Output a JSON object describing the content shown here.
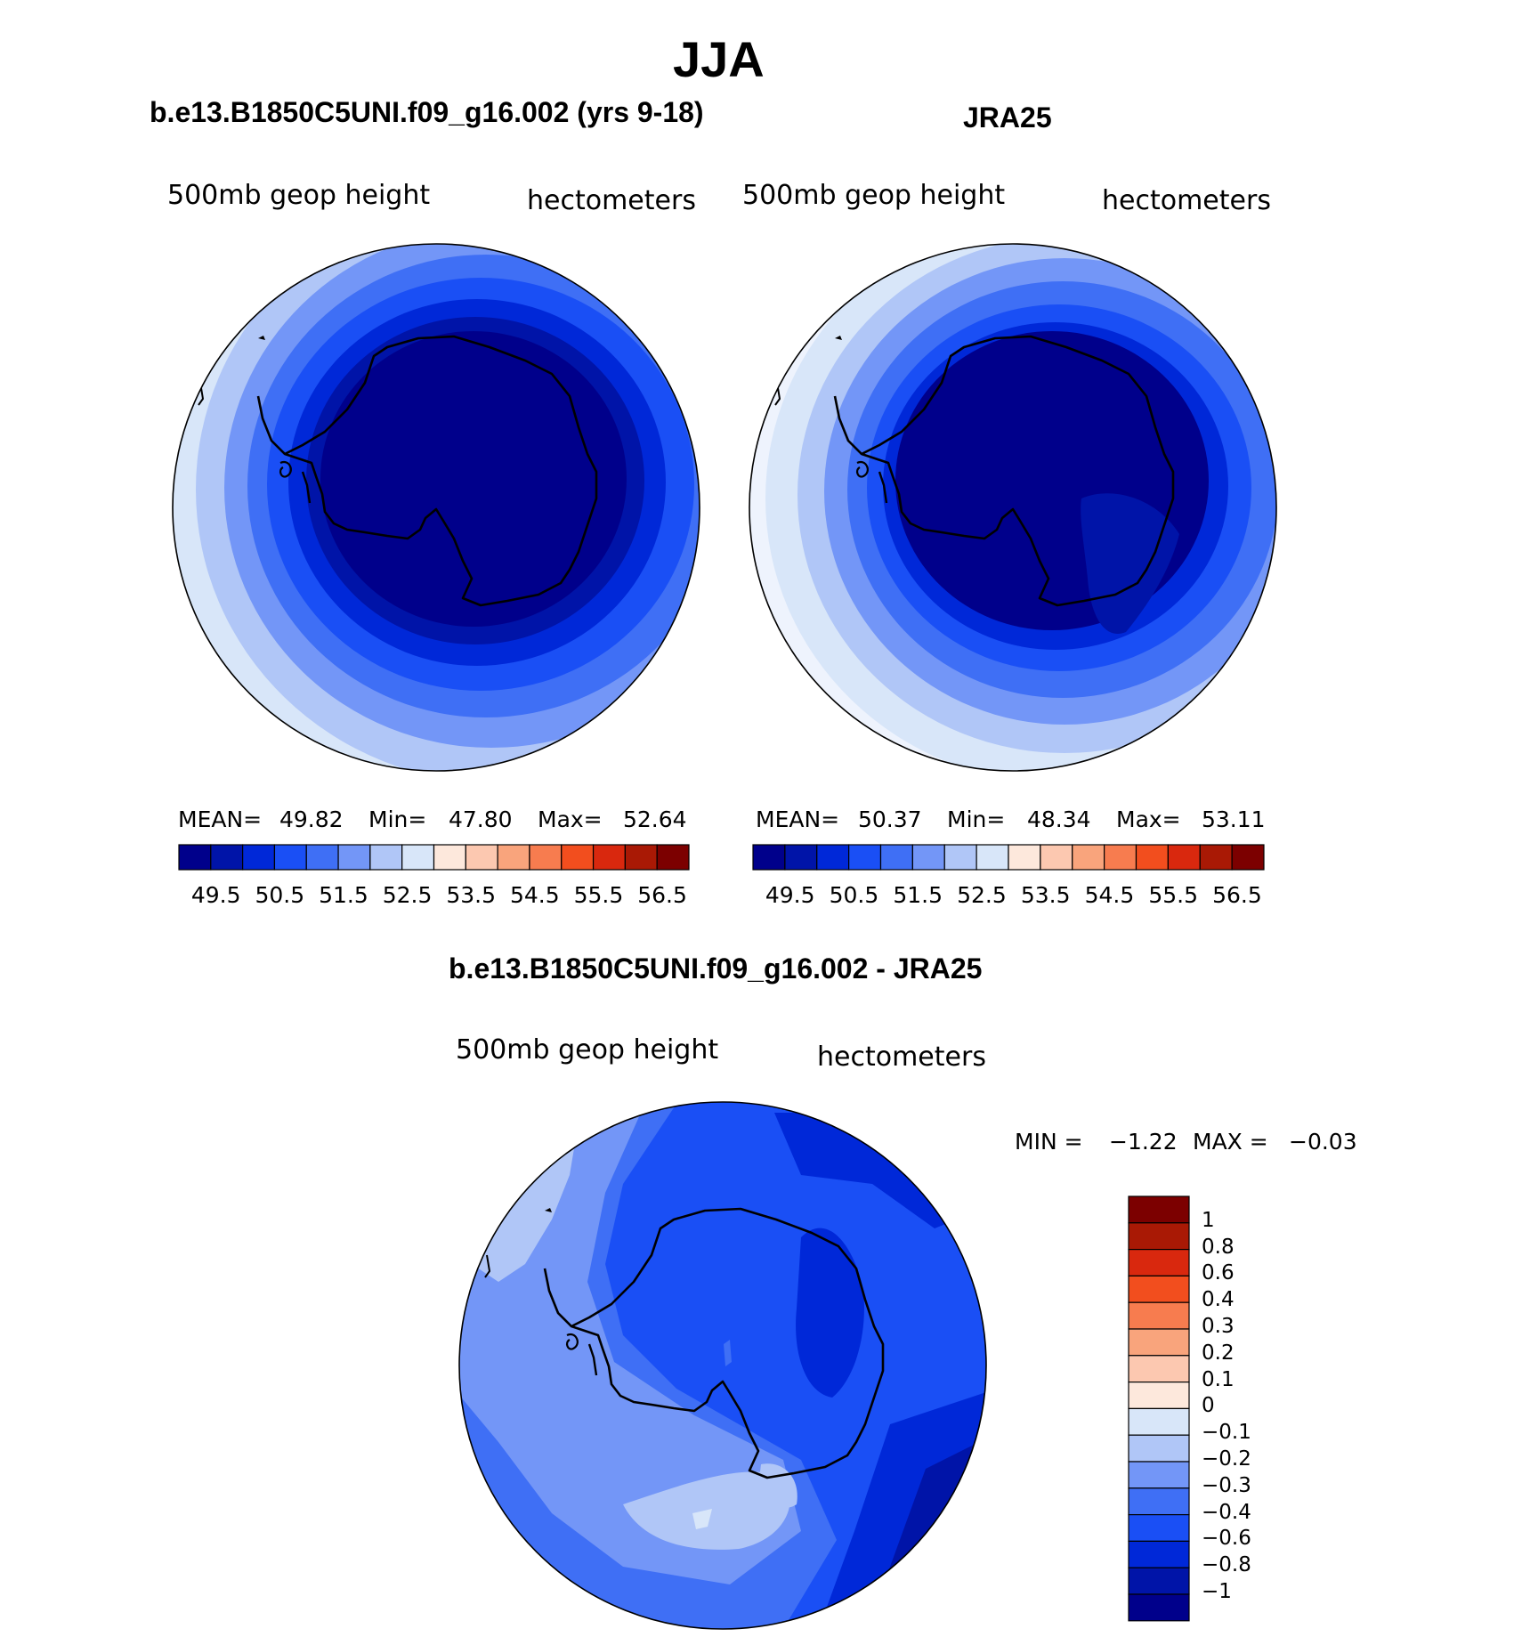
{
  "page": {
    "season": "JJA",
    "diff_title": "b.e13.B1850C5UNI.f09_g16.002 - JRA25"
  },
  "panels": [
    {
      "case_title": "b.e13.B1850C5UNI.f09_g16.002 (yrs 9-18)",
      "variable": "500mb geop height",
      "units": "hectometers",
      "mean_label": "MEAN=",
      "mean": "49.82",
      "min_label": "Min=",
      "min": "47.80",
      "max_label": "Max=",
      "max": "52.64"
    },
    {
      "case_title": "JRA25",
      "variable": "500mb geop height",
      "units": "hectometers",
      "mean_label": "MEAN=",
      "mean": "50.37",
      "min_label": "Min=",
      "min": "48.34",
      "max_label": "Max=",
      "max": "53.11"
    }
  ],
  "diff_panel": {
    "variable": "500mb geop height",
    "units": "hectometers",
    "min_label": "MIN =",
    "min": "−1.22",
    "max_label": "MAX =",
    "max": "−0.03"
  },
  "colorbar_levels": [
    "49.5",
    "50.5",
    "51.5",
    "52.5",
    "53.5",
    "54.5",
    "55.5",
    "56.5"
  ],
  "diff_colorbar_levels": [
    "1",
    "0.8",
    "0.6",
    "0.4",
    "0.3",
    "0.2",
    "0.1",
    "0",
    "−0.1",
    "−0.2",
    "−0.3",
    "−0.4",
    "−0.6",
    "−0.8",
    "−1"
  ],
  "palette": [
    "#00008b",
    "#0014a8",
    "#0028d8",
    "#1a4ff5",
    "#3f6ff5",
    "#7396f7",
    "#b0c6f7",
    "#d8e6f9",
    "#fde8dc",
    "#fcc8b0",
    "#f9a47c",
    "#f77c4f",
    "#f24e1e",
    "#d9280e",
    "#a91905",
    "#7c0000"
  ],
  "chart_data": [
    {
      "type": "heatmap",
      "title": "b.e13.B1850C5UNI.f09_g16.002 (yrs 9-18)",
      "variable": "500mb geop height",
      "units": "hectometers",
      "projection": "south polar stereographic",
      "mean": 49.82,
      "min": 47.8,
      "max": 52.64,
      "contour_levels": [
        49.5,
        50.5,
        51.5,
        52.5,
        53.5,
        54.5,
        55.5,
        56.5
      ]
    },
    {
      "type": "heatmap",
      "title": "JRA25",
      "variable": "500mb geop height",
      "units": "hectometers",
      "projection": "south polar stereographic",
      "mean": 50.37,
      "min": 48.34,
      "max": 53.11,
      "contour_levels": [
        49.5,
        50.5,
        51.5,
        52.5,
        53.5,
        54.5,
        55.5,
        56.5
      ]
    },
    {
      "type": "heatmap",
      "title": "b.e13.B1850C5UNI.f09_g16.002 - JRA25",
      "variable": "500mb geop height",
      "units": "hectometers",
      "projection": "south polar stereographic",
      "min": -1.22,
      "max": -0.03,
      "contour_levels": [
        -1,
        -0.8,
        -0.6,
        -0.4,
        -0.3,
        -0.2,
        -0.1,
        0,
        0.1,
        0.2,
        0.3,
        0.4,
        0.6,
        0.8,
        1
      ]
    }
  ]
}
